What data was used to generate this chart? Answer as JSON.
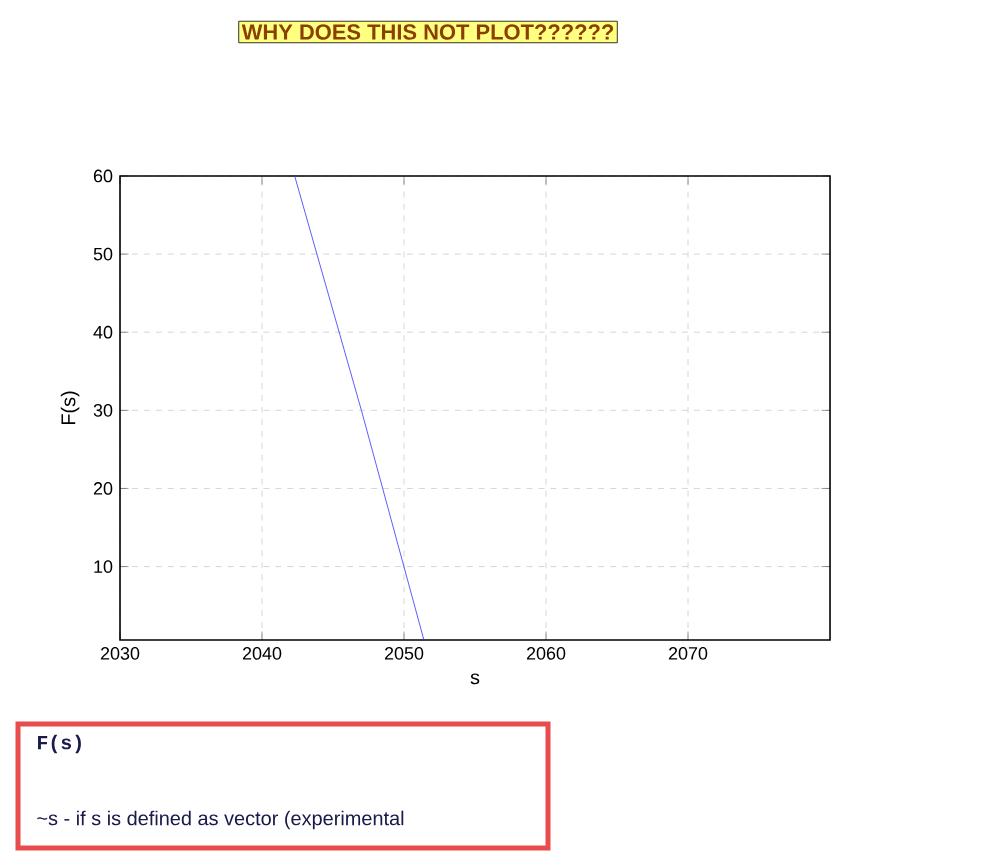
{
  "chart_data": {
    "type": "line",
    "title": "WHY DOES THIS NOT PLOT??????",
    "xlabel": "s",
    "ylabel": "F(s)",
    "annotations": [
      "F(s)",
      "~s - if s is defined as vector (experimental"
    ],
    "series": [
      {
        "color": "#3333ff",
        "x": [
          2042.3,
          2047.0,
          2051.4
        ],
        "values": [
          60,
          30,
          0.6
        ]
      }
    ],
    "xlim": [
      2030,
      2080
    ],
    "ylim": [
      0.6,
      60
    ],
    "xticks": [
      2030,
      2040,
      2050,
      2060,
      2070
    ],
    "yticks": [
      10,
      20,
      30,
      40,
      50,
      60
    ],
    "grid": true
  }
}
